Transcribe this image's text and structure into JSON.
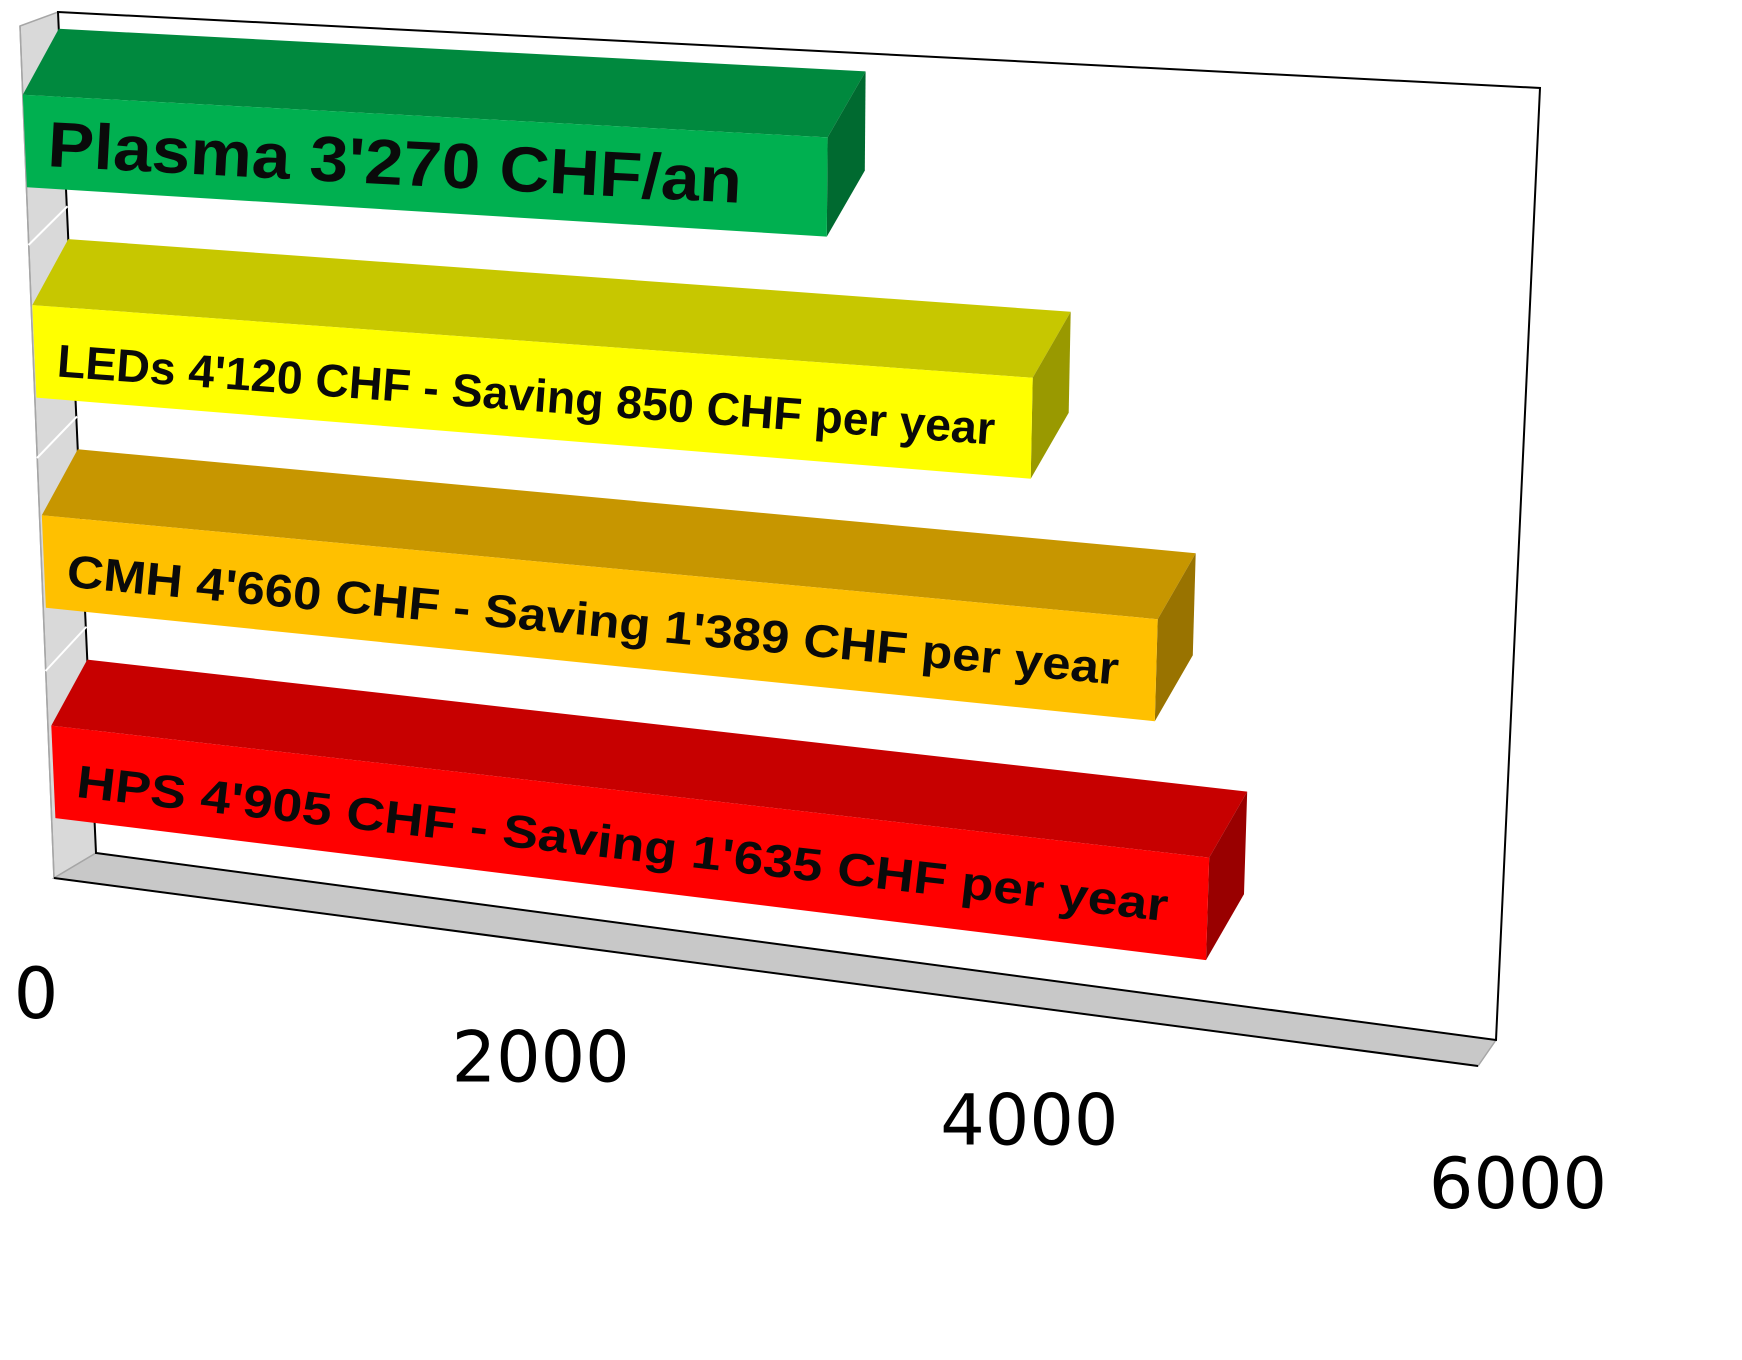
{
  "chart_data": {
    "type": "bar",
    "orientation": "horizontal",
    "style": "3d",
    "categories": [
      "Plasma 3'270 CHF/an",
      "LEDs 4'120 CHF - Saving 850 CHF per year",
      "CMH 4'660 CHF - Saving 1'389 CHF per year",
      "HPS 4'905 CHF - Saving 1'635 CHF per year"
    ],
    "values": [
      3270,
      4120,
      4660,
      4905
    ],
    "colors": [
      "#00b050",
      "#ffff00",
      "#ffc000",
      "#ff0000"
    ],
    "xlim": [
      0,
      6000
    ],
    "xticks": [
      "0",
      "2000",
      "4000",
      "6000"
    ],
    "title": "",
    "xlabel": "",
    "ylabel": "",
    "legend": "none",
    "grid": false
  }
}
